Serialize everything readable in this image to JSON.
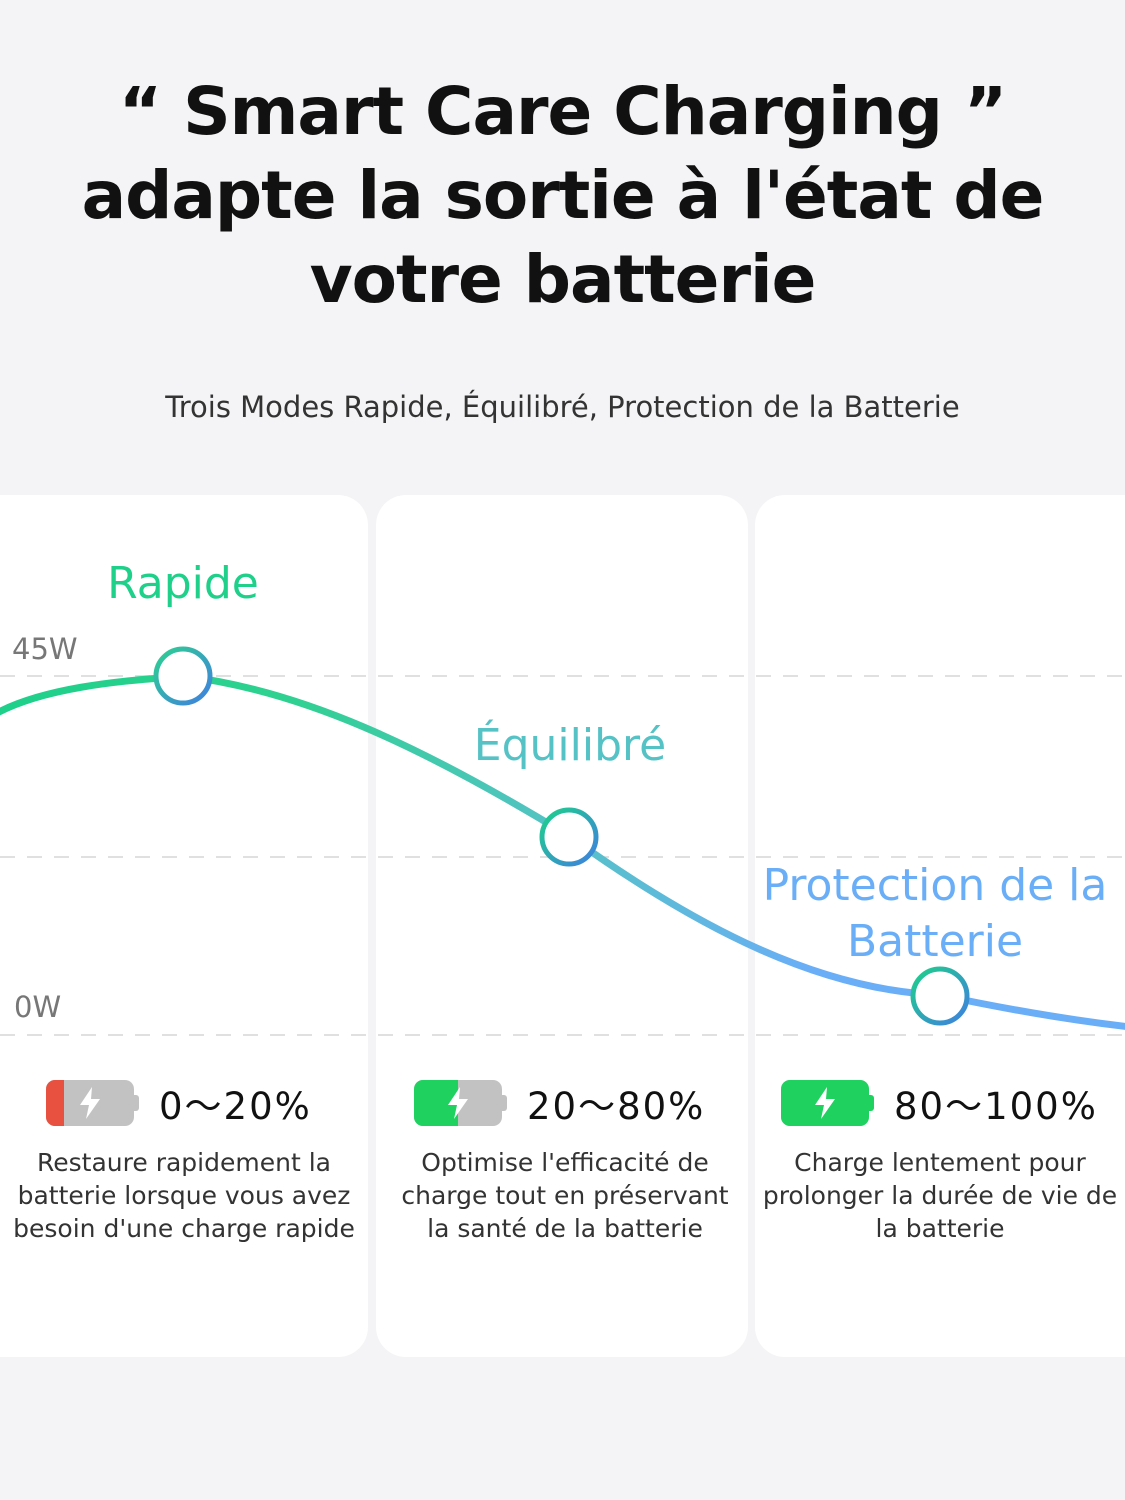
{
  "headline": {
    "line1": "“ Smart Care Charging ”",
    "line2": "adapte la sortie à l'état de",
    "line3": "votre batterie"
  },
  "subtitle": "Trois Modes Rapide, Équilibré, Protection de la Batterie",
  "axis": {
    "max_label": "45W",
    "min_label": "0W"
  },
  "colors": {
    "rapide": "#1ed08a",
    "equilibre": "#55c2c6",
    "protection": "#6aaef7",
    "battery_red": "#e8513f",
    "battery_green": "#1fd25f",
    "battery_empty": "#c2c2c2"
  },
  "modes": [
    {
      "label": "Rapide",
      "range": "0～20%",
      "battery_level": 0.2,
      "battery_color": "#e8513f",
      "icon": "battery-low-icon",
      "description": "Restaure rapidement la batterie lorsque vous avez besoin d'une charge rapide"
    },
    {
      "label": "Équilibré",
      "range": "20～80%",
      "battery_level": 0.5,
      "battery_color": "#1fd25f",
      "icon": "battery-half-icon",
      "description": "Optimise l'efficacité de charge tout en préservant la santé de la batterie"
    },
    {
      "label": "Protection de la Batterie",
      "range": "80～100%",
      "battery_level": 1.0,
      "battery_color": "#1fd25f",
      "icon": "battery-full-icon",
      "description": "Charge lentement pour prolonger la durée de vie de la batterie"
    }
  ]
}
